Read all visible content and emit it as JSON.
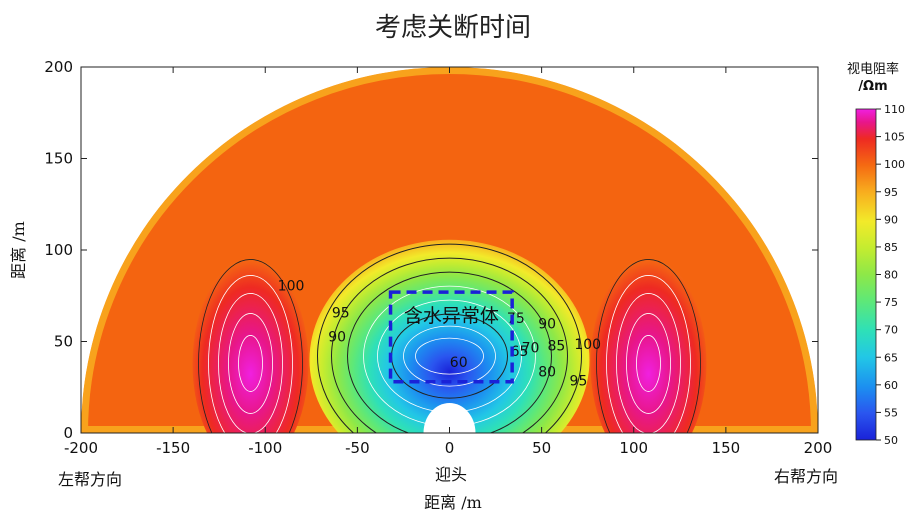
{
  "chart_data": {
    "type": "heatmap",
    "title": "考虑关断时间",
    "xlabel": "距离  /m",
    "ylabel": "距离  /m",
    "xlim": [
      -200,
      200
    ],
    "ylim": [
      0,
      200
    ],
    "x_ticks": [
      -200,
      -150,
      -100,
      -50,
      0,
      50,
      100,
      150,
      200
    ],
    "y_ticks": [
      0,
      50,
      100,
      150,
      200
    ],
    "x_tick_labels": [
      "-200",
      "-150",
      "-100",
      "-50",
      "0",
      "50",
      "100",
      "150",
      "200"
    ],
    "y_tick_labels": [
      "0",
      "50",
      "100",
      "150",
      "200"
    ],
    "side_labels": {
      "left": "左帮方向",
      "center": "迎头",
      "right": "右帮方向"
    },
    "colorbar": {
      "title_line1": "视电阻率",
      "title_line2": "/Ωm",
      "min": 50,
      "max": 110,
      "ticks": [
        50,
        55,
        60,
        65,
        70,
        75,
        80,
        85,
        90,
        95,
        100,
        105,
        110
      ],
      "tick_labels": [
        "50",
        "55",
        "60",
        "65",
        "70",
        "75",
        "80",
        "85",
        "90",
        "95",
        "100",
        "105",
        "110"
      ],
      "colors": [
        "#1a22d8",
        "#2a55ef",
        "#1c8ff0",
        "#22c7e6",
        "#2ee0b8",
        "#5ee878",
        "#8ee848",
        "#c4ec30",
        "#f2ea2a",
        "#f8ad1e",
        "#f56a12",
        "#ee2a22",
        "#e8168a",
        "#f020e0"
      ]
    },
    "contour_labels": [
      {
        "text": "100",
        "x": -86,
        "y": 78
      },
      {
        "text": "95",
        "x": -59,
        "y": 63
      },
      {
        "text": "90",
        "x": -61,
        "y": 50
      },
      {
        "text": "60",
        "x": 5,
        "y": 36
      },
      {
        "text": "65",
        "x": 38,
        "y": 42
      },
      {
        "text": "70",
        "x": 44,
        "y": 44
      },
      {
        "text": "75",
        "x": 36,
        "y": 60
      },
      {
        "text": "90",
        "x": 53,
        "y": 57
      },
      {
        "text": "85",
        "x": 58,
        "y": 45
      },
      {
        "text": "80",
        "x": 53,
        "y": 31
      },
      {
        "text": "95",
        "x": 70,
        "y": 26
      },
      {
        "text": "100",
        "x": 75,
        "y": 46
      }
    ],
    "annotation": {
      "text": "含水异常体",
      "x0": -32,
      "x1": 34,
      "y0": 28,
      "y1": 77
    }
  }
}
